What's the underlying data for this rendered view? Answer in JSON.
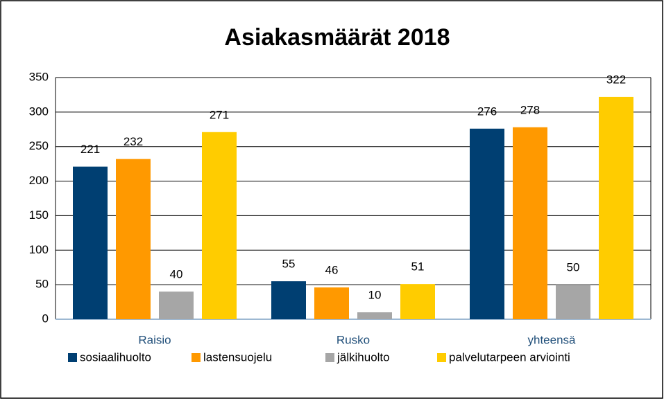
{
  "chart_data": {
    "type": "bar",
    "title": "Asiakasmäärät 2018",
    "categories": [
      "Raisio",
      "Rusko",
      "yhteensä"
    ],
    "series": [
      {
        "name": "sosiaalihuolto",
        "color": "#003f72",
        "values": [
          221,
          55,
          276
        ]
      },
      {
        "name": "lastensuojelu",
        "color": "#ff9900",
        "values": [
          232,
          46,
          278
        ]
      },
      {
        "name": "jälkihuolto",
        "color": "#a6a6a6",
        "values": [
          40,
          10,
          50
        ]
      },
      {
        "name": "palvelutarpeen arviointi",
        "color": "#ffcc00",
        "values": [
          271,
          51,
          322
        ]
      }
    ],
    "ylim": [
      0,
      350
    ],
    "yticks": [
      0,
      50,
      100,
      150,
      200,
      250,
      300,
      350
    ],
    "grid": true,
    "legend": "bottom"
  }
}
